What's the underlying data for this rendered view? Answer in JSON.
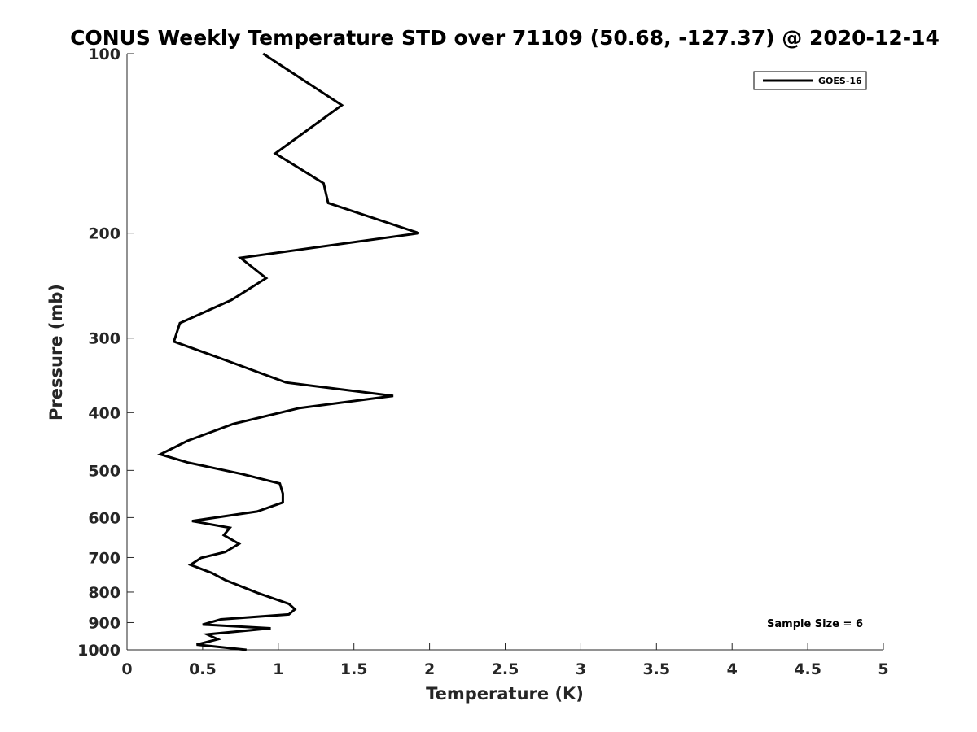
{
  "chart_data": {
    "type": "line",
    "title": "CONUS Weekly Temperature STD over 71109 (50.68, -127.37) @ 2020-12-14",
    "xlabel": "Temperature (K)",
    "ylabel": "Pressure (mb)",
    "xlim": [
      0,
      5
    ],
    "ylim": [
      1000,
      100
    ],
    "y_scale": "log",
    "y_reversed": true,
    "x_ticks": [
      "0",
      "0.5",
      "1",
      "1.5",
      "2",
      "2.5",
      "3",
      "3.5",
      "4",
      "4.5",
      "5"
    ],
    "x_tick_values": [
      0,
      0.5,
      1,
      1.5,
      2,
      2.5,
      3,
      3.5,
      4,
      4.5,
      5
    ],
    "y_ticks": [
      "100",
      "200",
      "300",
      "400",
      "500",
      "600",
      "700",
      "800",
      "900",
      "1000"
    ],
    "y_tick_values": [
      100,
      200,
      300,
      400,
      500,
      600,
      700,
      800,
      900,
      1000
    ],
    "grid": false,
    "legend_position": "top-right",
    "annotation": "Sample Size = 6",
    "series": [
      {
        "name": "GOES-16",
        "color": "#000000",
        "x": [
          0.9,
          1.42,
          0.98,
          1.3,
          1.33,
          1.93,
          0.75,
          0.92,
          0.69,
          0.35,
          0.31,
          0.67,
          1.05,
          1.76,
          1.14,
          0.7,
          0.4,
          0.22,
          0.4,
          0.76,
          1.01,
          1.03,
          1.03,
          0.86,
          0.43,
          0.68,
          0.64,
          0.74,
          0.65,
          0.49,
          0.42,
          0.56,
          0.65,
          0.86,
          1.07,
          1.11,
          1.07,
          0.62,
          0.5,
          0.95,
          0.53,
          0.6,
          0.46,
          0.79
        ],
        "y": [
          100,
          122,
          147,
          165,
          178,
          200,
          220,
          238,
          259,
          283,
          304,
          328,
          356,
          375,
          393,
          418,
          446,
          470,
          485,
          507,
          526,
          547,
          566,
          586,
          608,
          624,
          642,
          664,
          685,
          701,
          720,
          743,
          764,
          802,
          837,
          855,
          872,
          889,
          907,
          920,
          942,
          960,
          980,
          1000
        ]
      }
    ]
  }
}
